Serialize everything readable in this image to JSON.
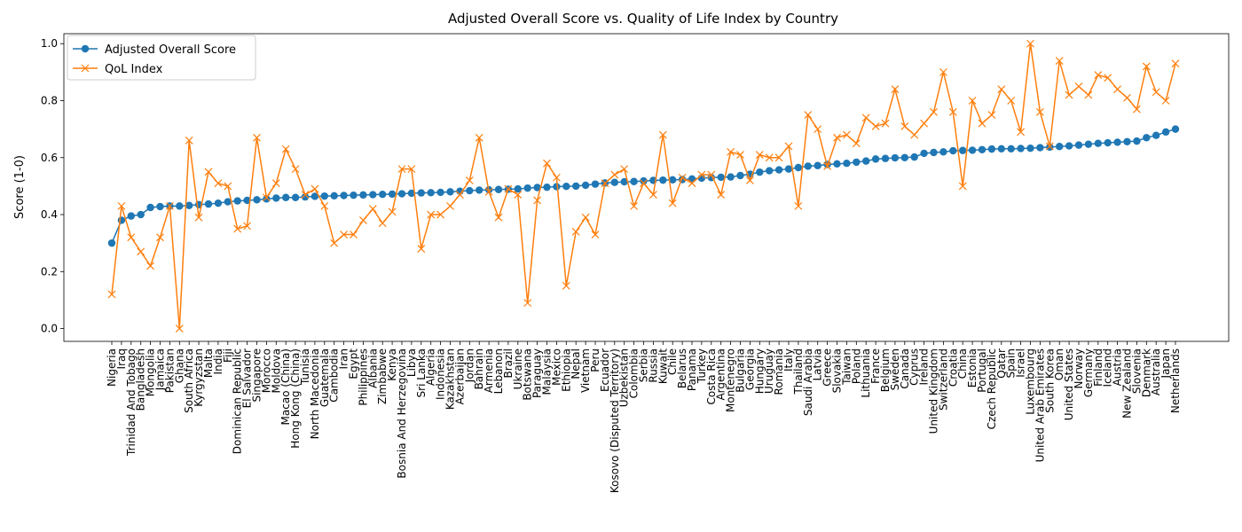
{
  "chart_data": {
    "type": "line",
    "title": "Adjusted Overall Score vs. Quality of Life Index by Country",
    "y_label": "Score (1-0)",
    "categories": [
      "Nigeria",
      "Iraq",
      "Trinidad And Tobago",
      "Bangladesh",
      "Mongolia",
      "Jamaica",
      "Pakistan",
      "Ghana",
      "South Africa",
      "Kyrgyzstan",
      "Malta",
      "India",
      "Fiji",
      "Dominican Republic",
      "El Salvador",
      "Singapore",
      "Morocco",
      "Moldova",
      "Macao (China)",
      "Hong Kong (China)",
      "Tunisia",
      "North Macedonia",
      "Guatemala",
      "Cambodia",
      "Iran",
      "Egypt",
      "Philippines",
      "Albania",
      "Zimbabwe",
      "Kenya",
      "Bosnia And Herzegovina",
      "Libya",
      "Sri Lanka",
      "Algeria",
      "Indonesia",
      "Kazakhstan",
      "Azerbaijan",
      "Jordan",
      "Bahrain",
      "Armenia",
      "Lebanon",
      "Brazil",
      "Ukraine",
      "Botswana",
      "Paraguay",
      "Malaysia",
      "Mexico",
      "Ethiopia",
      "Nepal",
      "Vietnam",
      "Peru",
      "Ecuador",
      "Kosovo (Disputed Territory)",
      "Uzbekistan",
      "Colombia",
      "Serbia",
      "Russia",
      "Kuwait",
      "Chile",
      "Belarus",
      "Panama",
      "Turkey",
      "Costa Rica",
      "Argentina",
      "Montenegro",
      "Bulgaria",
      "Georgia",
      "Hungary",
      "Uruguay",
      "Romania",
      "Italy",
      "Thailand",
      "Saudi Arabia",
      "Latvia",
      "Greece",
      "Slovakia",
      "Taiwan",
      "Poland",
      "Lithuania",
      "France",
      "Belgium",
      "Sweden",
      "Canada",
      "Cyprus",
      "Ireland",
      "United Kingdom",
      "Switzerland",
      "Croatia",
      "China",
      "Estonia",
      "Portugal",
      "Czech Republic",
      "Qatar",
      "Spain",
      "Israel",
      "Luxembourg",
      "United Arab Emirates",
      "South Korea",
      "Oman",
      "United States",
      "Norway",
      "Germany",
      "Finland",
      "Iceland",
      "Austria",
      "New Zealand",
      "Slovenia",
      "Denmark",
      "Australia",
      "Japan",
      "Netherlands"
    ],
    "series": [
      {
        "name": "Adjusted Overall Score",
        "color": "#1f77b4",
        "marker": "o",
        "values": [
          0.3,
          0.38,
          0.395,
          0.4,
          0.425,
          0.428,
          0.43,
          0.43,
          0.432,
          0.435,
          0.437,
          0.44,
          0.445,
          0.448,
          0.45,
          0.452,
          0.455,
          0.458,
          0.46,
          0.46,
          0.462,
          0.464,
          0.465,
          0.466,
          0.467,
          0.468,
          0.469,
          0.47,
          0.471,
          0.472,
          0.473,
          0.475,
          0.476,
          0.477,
          0.478,
          0.48,
          0.482,
          0.484,
          0.486,
          0.487,
          0.488,
          0.489,
          0.49,
          0.493,
          0.495,
          0.496,
          0.498,
          0.499,
          0.5,
          0.503,
          0.507,
          0.511,
          0.513,
          0.515,
          0.516,
          0.518,
          0.52,
          0.521,
          0.522,
          0.523,
          0.525,
          0.528,
          0.53,
          0.531,
          0.532,
          0.537,
          0.542,
          0.549,
          0.554,
          0.557,
          0.56,
          0.565,
          0.57,
          0.572,
          0.576,
          0.578,
          0.58,
          0.584,
          0.588,
          0.595,
          0.597,
          0.599,
          0.6,
          0.602,
          0.615,
          0.618,
          0.62,
          0.624,
          0.625,
          0.626,
          0.628,
          0.63,
          0.631,
          0.631,
          0.632,
          0.633,
          0.635,
          0.637,
          0.639,
          0.641,
          0.644,
          0.647,
          0.65,
          0.652,
          0.654,
          0.656,
          0.658,
          0.67,
          0.678,
          0.69,
          0.7
        ]
      },
      {
        "name": "QoL Index",
        "color": "#ff7f0e",
        "marker": "x",
        "values": [
          0.12,
          0.43,
          0.32,
          0.27,
          0.22,
          0.32,
          0.43,
          0.0,
          0.66,
          0.39,
          0.55,
          0.51,
          0.5,
          0.35,
          0.36,
          0.67,
          0.46,
          0.51,
          0.63,
          0.56,
          0.47,
          0.49,
          0.43,
          0.3,
          0.33,
          0.33,
          0.38,
          0.42,
          0.37,
          0.41,
          0.56,
          0.56,
          0.28,
          0.4,
          0.4,
          0.43,
          0.47,
          0.52,
          0.67,
          0.48,
          0.39,
          0.49,
          0.47,
          0.09,
          0.45,
          0.58,
          0.53,
          0.15,
          0.34,
          0.39,
          0.33,
          0.51,
          0.54,
          0.56,
          0.43,
          0.51,
          0.47,
          0.68,
          0.44,
          0.53,
          0.51,
          0.54,
          0.54,
          0.47,
          0.62,
          0.61,
          0.52,
          0.61,
          0.6,
          0.6,
          0.64,
          0.43,
          0.75,
          0.7,
          0.57,
          0.67,
          0.68,
          0.65,
          0.74,
          0.71,
          0.72,
          0.84,
          0.71,
          0.68,
          0.72,
          0.76,
          0.9,
          0.76,
          0.5,
          0.8,
          0.72,
          0.75,
          0.84,
          0.8,
          0.69,
          1.0,
          0.76,
          0.64,
          0.94,
          0.82,
          0.85,
          0.82,
          0.89,
          0.88,
          0.84,
          0.81,
          0.77,
          0.92,
          0.83,
          0.8,
          0.93
        ]
      }
    ],
    "ylim": [
      -0.045,
      1.035
    ],
    "yticks": [
      {
        "value": 0,
        "label": "0.0"
      },
      {
        "value": 0.2,
        "label": "0.2"
      },
      {
        "value": 0.4,
        "label": "0.4"
      },
      {
        "value": 0.6,
        "label": "0.6"
      },
      {
        "value": 0.8,
        "label": "0.8"
      },
      {
        "value": 1,
        "label": "1.0"
      }
    ],
    "legend": "upper left",
    "grid": false
  }
}
